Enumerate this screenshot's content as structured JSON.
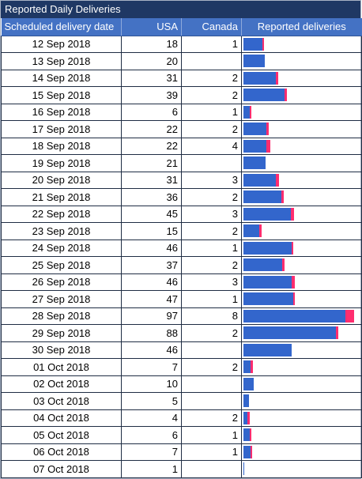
{
  "title": "Reported Daily Deliveries",
  "columns": {
    "date": "Scheduled delivery date",
    "usa": "USA",
    "canada": "Canada",
    "bar": "Reported deliveries"
  },
  "colors": {
    "usa": "#3366cc",
    "canada": "#ff2d6f",
    "header": "#4472c4",
    "title": "#1f3864"
  },
  "max_total": 105,
  "rows": [
    {
      "date": "12 Sep 2018",
      "usa": 18,
      "canada": 1
    },
    {
      "date": "13 Sep 2018",
      "usa": 20,
      "canada": null
    },
    {
      "date": "14 Sep 2018",
      "usa": 31,
      "canada": 2
    },
    {
      "date": "15 Sep 2018",
      "usa": 39,
      "canada": 2
    },
    {
      "date": "16 Sep 2018",
      "usa": 6,
      "canada": 1
    },
    {
      "date": "17 Sep 2018",
      "usa": 22,
      "canada": 2
    },
    {
      "date": "18 Sep 2018",
      "usa": 22,
      "canada": 4
    },
    {
      "date": "19 Sep 2018",
      "usa": 21,
      "canada": null
    },
    {
      "date": "20 Sep 2018",
      "usa": 31,
      "canada": 3
    },
    {
      "date": "21 Sep 2018",
      "usa": 36,
      "canada": 2
    },
    {
      "date": "22 Sep 2018",
      "usa": 45,
      "canada": 3
    },
    {
      "date": "23 Sep 2018",
      "usa": 15,
      "canada": 2
    },
    {
      "date": "24 Sep 2018",
      "usa": 46,
      "canada": 1
    },
    {
      "date": "25 Sep 2018",
      "usa": 37,
      "canada": 2
    },
    {
      "date": "26 Sep 2018",
      "usa": 46,
      "canada": 3
    },
    {
      "date": "27 Sep 2018",
      "usa": 47,
      "canada": 1
    },
    {
      "date": "28 Sep 2018",
      "usa": 97,
      "canada": 8
    },
    {
      "date": "29 Sep 2018",
      "usa": 88,
      "canada": 2
    },
    {
      "date": "30 Sep 2018",
      "usa": 46,
      "canada": null
    },
    {
      "date": "01 Oct 2018",
      "usa": 7,
      "canada": 2
    },
    {
      "date": "02 Oct 2018",
      "usa": 10,
      "canada": null
    },
    {
      "date": "03 Oct 2018",
      "usa": 5,
      "canada": null
    },
    {
      "date": "04 Oct 2018",
      "usa": 4,
      "canada": 2
    },
    {
      "date": "05 Oct 2018",
      "usa": 6,
      "canada": 1
    },
    {
      "date": "06 Oct 2018",
      "usa": 7,
      "canada": 1
    },
    {
      "date": "07 Oct 2018",
      "usa": 1,
      "canada": null
    }
  ]
}
